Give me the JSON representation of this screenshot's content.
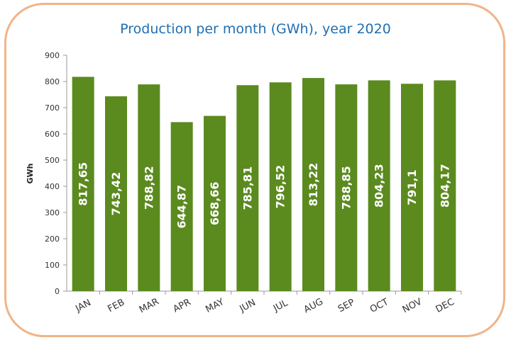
{
  "colors": {
    "bar": "#5b8a1f",
    "frame_border": "#f0b488",
    "title": "#1f6fb2",
    "axis": "#9a9a9a"
  },
  "chart_data": {
    "type": "bar",
    "title": "Production per month (GWh), year 2020",
    "xlabel": "",
    "ylabel": "GWh",
    "ylim": [
      0,
      900
    ],
    "yticks": [
      0,
      100,
      200,
      300,
      400,
      500,
      600,
      700,
      800,
      900
    ],
    "grid": false,
    "categories": [
      "JAN",
      "FEB",
      "MAR",
      "APR",
      "MAY",
      "JUN",
      "JUL",
      "AUG",
      "SEP",
      "OCT",
      "NOV",
      "DEC"
    ],
    "values": [
      817.65,
      743.42,
      788.82,
      644.87,
      668.66,
      785.81,
      796.52,
      813.22,
      788.85,
      804.23,
      791.1,
      804.17
    ],
    "value_labels": [
      "817,65",
      "743,42",
      "788,82",
      "644,87",
      "668,66",
      "785,81",
      "796,52",
      "813,22",
      "788,85",
      "804,23",
      "791,1",
      "804,17"
    ]
  }
}
